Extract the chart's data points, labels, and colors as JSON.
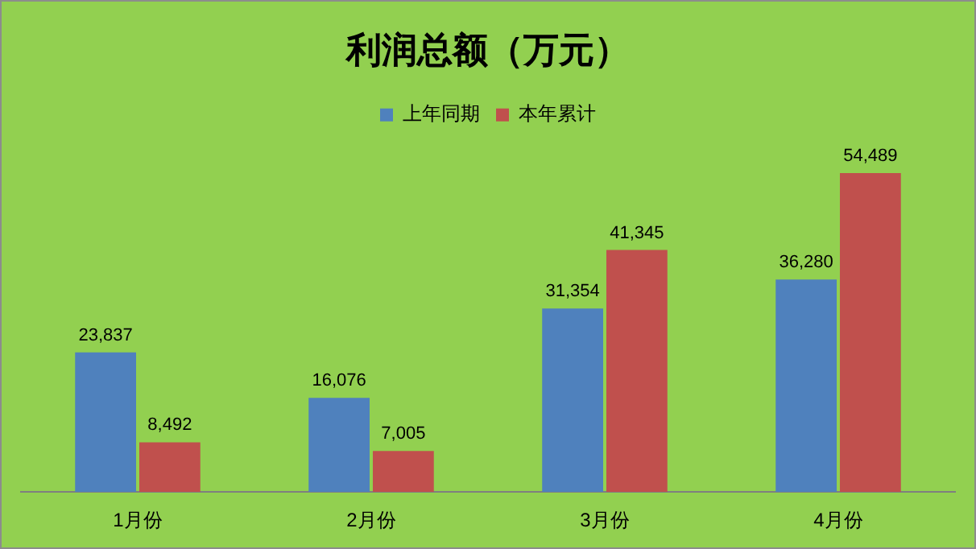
{
  "chart_data": {
    "type": "bar",
    "title": "利润总额（万元）",
    "categories": [
      "1月份",
      "2月份",
      "3月份",
      "4月份"
    ],
    "series": [
      {
        "name": "上年同期",
        "color": "#4f81bd",
        "values": [
          23837,
          16076,
          31354,
          36280
        ],
        "value_labels": [
          "23,837",
          "16,076",
          "31,354",
          "36,280"
        ]
      },
      {
        "name": "本年累计",
        "color": "#c0504d",
        "values": [
          8492,
          7005,
          41345,
          54489
        ],
        "value_labels": [
          "8,492",
          "7,005",
          "41,345",
          "54,489"
        ]
      }
    ],
    "legend": "top",
    "grid": false,
    "tick_labels": "x"
  }
}
